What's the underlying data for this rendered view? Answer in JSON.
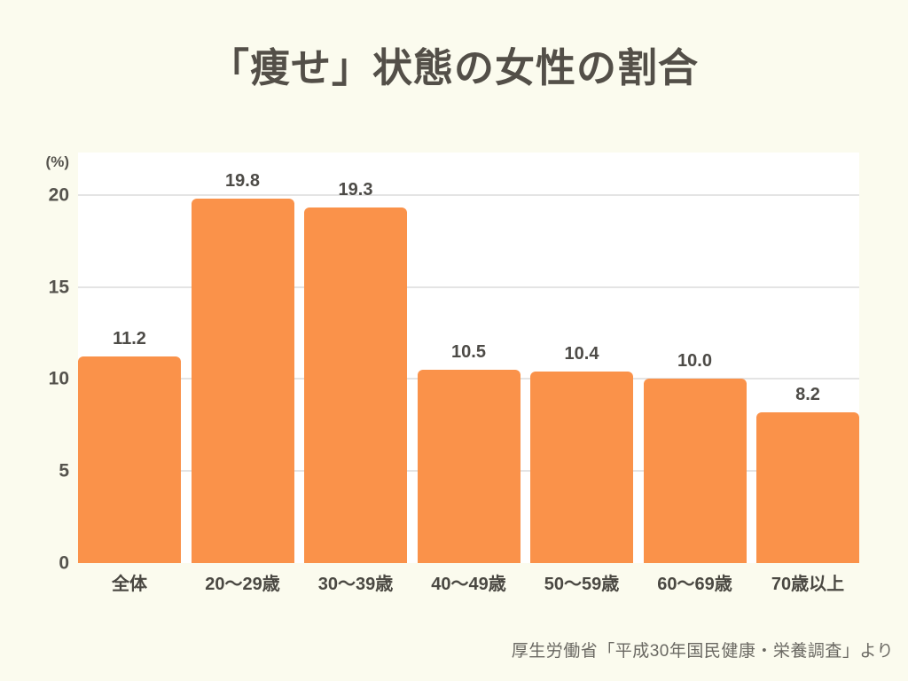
{
  "page": {
    "background_color": "#FBFBEE",
    "title": "「痩せ」状態の女性の割合",
    "source_note": "厚生労働省「平成30年国民健康・栄養調査」より"
  },
  "chart_data": {
    "type": "bar",
    "title": "「痩せ」状態の女性の割合",
    "unit_label": "(%)",
    "categories": [
      "全体",
      "20〜29歳",
      "30〜39歳",
      "40〜49歳",
      "50〜59歳",
      "60〜69歳",
      "70歳以上"
    ],
    "values": [
      11.2,
      19.8,
      19.3,
      10.5,
      10.4,
      10.0,
      8.2
    ],
    "value_labels": [
      "11.2",
      "19.8",
      "19.3",
      "10.5",
      "10.4",
      "10.0",
      "8.2"
    ],
    "xlabel": "",
    "ylabel": "(%)",
    "yticks": [
      0,
      5,
      10,
      15,
      20
    ],
    "ylim": [
      0,
      22.3
    ],
    "grid": true,
    "legend": false,
    "bar_color": "#FA924A",
    "plot_background": "#FFFFFF",
    "grid_color": "#E4E4E4",
    "source": "厚生労働省「平成30年国民健康・栄養調査」より"
  },
  "colors": {
    "background": "#FBFBEE",
    "bar": "#FA924A",
    "title_text": "#534F48",
    "axis_text": "#55534D",
    "value_text": "#4D4B47",
    "grid": "#E4E4E4",
    "footer_text": "#6A6862"
  }
}
